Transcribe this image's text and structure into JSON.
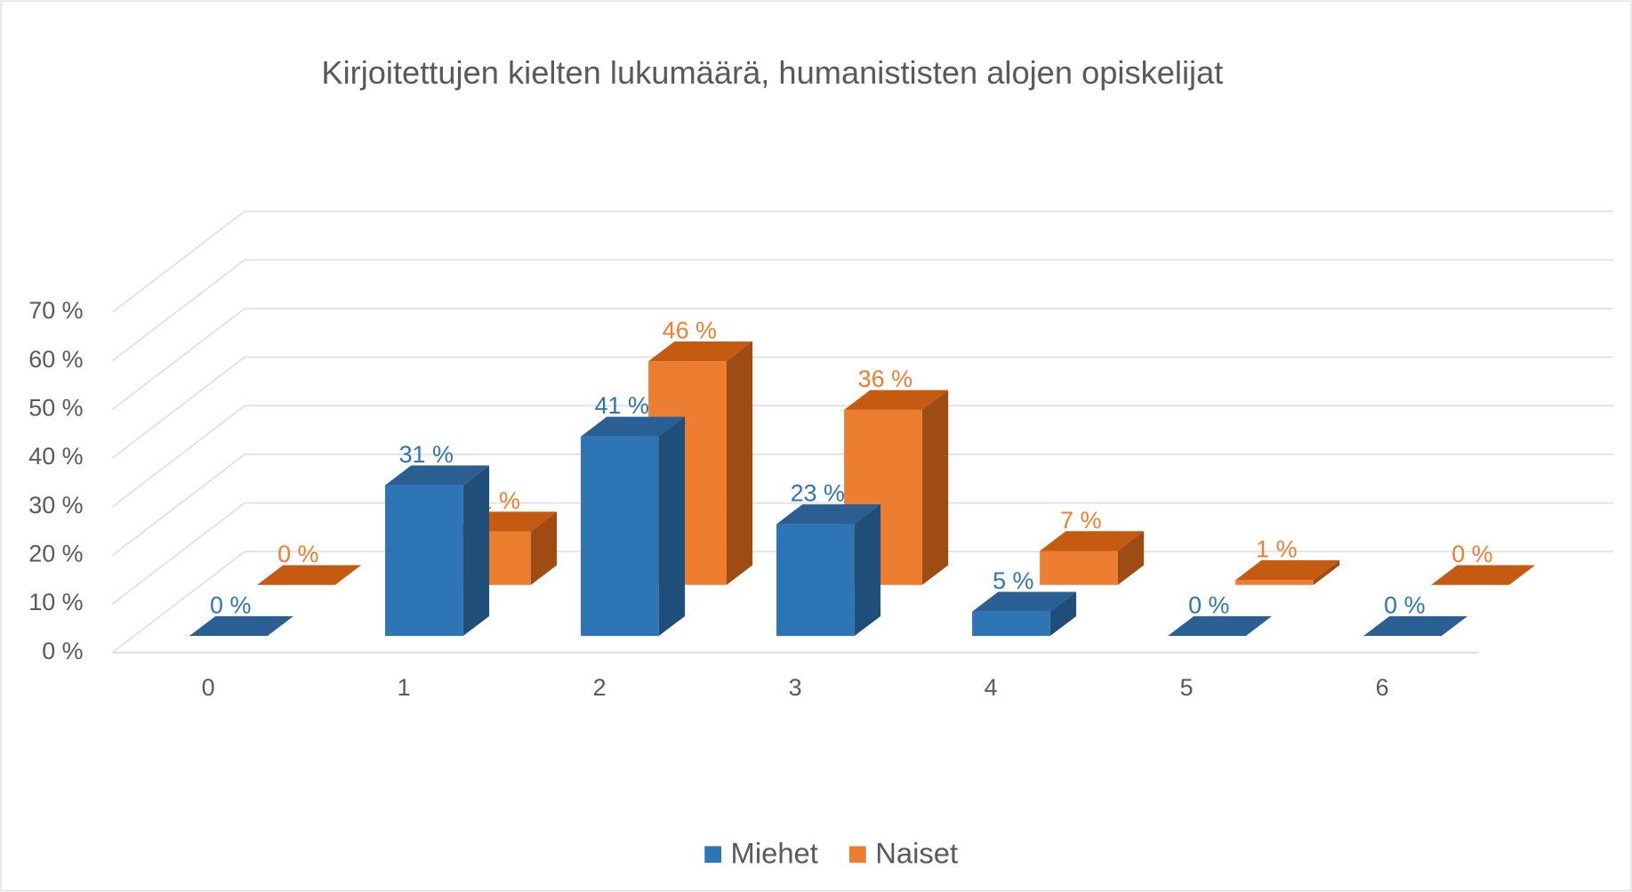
{
  "chart_data": {
    "type": "bar3d",
    "title": "Kirjoitettujen kielten lukumäärä, humanististen alojen opiskelijat",
    "categories": [
      "0",
      "1",
      "2",
      "3",
      "4",
      "5",
      "6"
    ],
    "series": [
      {
        "name": "Miehet",
        "color": "#2e75b6",
        "values": [
          0,
          31,
          41,
          23,
          5,
          0,
          0
        ],
        "value_labels": [
          "0 %",
          "31 %",
          "41 %",
          "23 %",
          "5 %",
          "0 %",
          "0 %"
        ]
      },
      {
        "name": "Naiset",
        "color": "#ed7d31",
        "values": [
          0,
          11,
          46,
          36,
          7,
          1,
          0
        ],
        "value_labels": [
          "0 %",
          "11 %",
          "46 %",
          "36 %",
          "7 %",
          "1 %",
          "0 %"
        ]
      }
    ],
    "ylim": [
      0,
      70
    ],
    "yticks": [
      {
        "value": 0,
        "label": "0 %"
      },
      {
        "value": 10,
        "label": "10 %"
      },
      {
        "value": 20,
        "label": "20 %"
      },
      {
        "value": 30,
        "label": "30 %"
      },
      {
        "value": 40,
        "label": "40 %"
      },
      {
        "value": 50,
        "label": "50 %"
      },
      {
        "value": 60,
        "label": "60 %"
      },
      {
        "value": 70,
        "label": "70 %"
      }
    ],
    "grid": true,
    "legend": "bottom"
  }
}
